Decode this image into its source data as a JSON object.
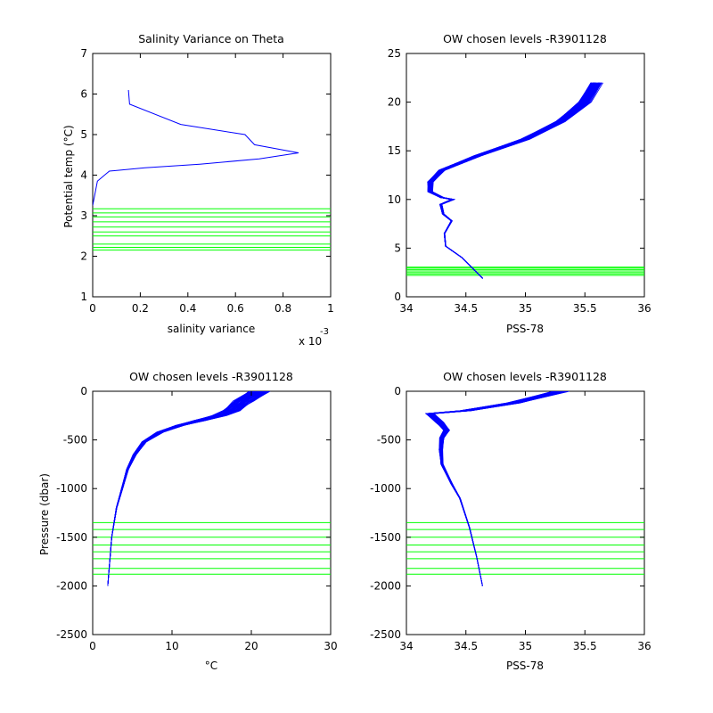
{
  "figure": {
    "background": "#ffffff",
    "axis_color": "#000000",
    "line_color": "#0000ff",
    "level_color": "#00ff00"
  },
  "chart_data": [
    {
      "type": "line",
      "title": "Salinity Variance on Theta",
      "xlabel": "salinity variance",
      "ylabel": "Potential temp (°C)",
      "x_exponent_base": "x 10",
      "x_exponent_power": "-3",
      "xlim": [
        0,
        1
      ],
      "ylim": [
        1,
        7
      ],
      "xticks": [
        0,
        0.2,
        0.4,
        0.6,
        0.8,
        1
      ],
      "xticklabels": [
        "0",
        "0.2",
        "0.4",
        "0.6",
        "0.8",
        "1"
      ],
      "yticks": [
        1,
        2,
        3,
        4,
        5,
        6,
        7
      ],
      "yticklabels": [
        "1",
        "2",
        "3",
        "4",
        "5",
        "6",
        "7"
      ],
      "series": [
        {
          "x": [
            0.15,
            0.155,
            0.37,
            0.64,
            0.68,
            0.865,
            0.7,
            0.45,
            0.22,
            0.07,
            0.05,
            0.02,
            0.0
          ],
          "y": [
            6.1,
            5.75,
            5.25,
            5.0,
            4.75,
            4.55,
            4.4,
            4.27,
            4.18,
            4.1,
            4.0,
            3.85,
            3.25
          ]
        }
      ],
      "levels": [
        2.15,
        2.22,
        2.3,
        2.5,
        2.6,
        2.72,
        2.85,
        2.97,
        3.07,
        3.17
      ]
    },
    {
      "type": "line",
      "title": "OW chosen levels -R3901128",
      "xlabel": "PSS-78",
      "ylabel": "",
      "xlim": [
        34,
        36
      ],
      "ylim": [
        0,
        25
      ],
      "xticks": [
        34,
        34.5,
        35,
        35.5,
        36
      ],
      "xticklabels": [
        "34",
        "34.5",
        "35",
        "35.5",
        "36"
      ],
      "yticks": [
        0,
        5,
        10,
        15,
        20,
        25
      ],
      "yticklabels": [
        "0",
        "5",
        "10",
        "15",
        "20",
        "25"
      ],
      "profile": {
        "x": [
          34.64,
          34.55,
          34.47,
          34.33,
          34.32,
          34.38,
          34.31,
          34.29,
          34.39,
          34.3,
          34.2,
          34.2,
          34.3,
          34.6,
          35.0,
          35.3,
          35.5,
          35.6
        ],
        "y": [
          1.9,
          3.0,
          4.0,
          5.2,
          6.5,
          7.8,
          8.5,
          9.5,
          10.0,
          10.2,
          10.8,
          11.8,
          13.0,
          14.5,
          16.2,
          18.0,
          20.0,
          22.0
        ],
        "count": 70,
        "spread_x": 0.1
      },
      "levels": [
        2.2,
        2.35,
        2.5,
        2.65,
        2.8,
        2.95,
        3.05
      ]
    },
    {
      "type": "line",
      "title": "OW chosen levels -R3901128",
      "xlabel": "°C",
      "ylabel": "Pressure (dbar)",
      "xlim": [
        0,
        30
      ],
      "ylim": [
        -2500,
        0
      ],
      "xticks": [
        0,
        10,
        20,
        30
      ],
      "xticklabels": [
        "0",
        "10",
        "20",
        "30"
      ],
      "yticks": [
        -2500,
        -2000,
        -1500,
        -1000,
        -500,
        0
      ],
      "yticklabels": [
        "-2500",
        "-2000",
        "-1500",
        "-1000",
        "-500",
        "0"
      ],
      "profile": {
        "x": [
          1.9,
          2.4,
          3.0,
          3.7,
          4.4,
          5.3,
          6.5,
          8.5,
          11.0,
          13.5,
          16.0,
          17.5,
          19.0,
          21.0
        ],
        "y": [
          -2000,
          -1500,
          -1200,
          -1000,
          -800,
          -650,
          -520,
          -420,
          -350,
          -300,
          -250,
          -200,
          -100,
          0
        ],
        "count": 70,
        "spread_x": 2.5
      },
      "levels": [
        -1350,
        -1420,
        -1500,
        -1580,
        -1650,
        -1720,
        -1820,
        -1880
      ]
    },
    {
      "type": "line",
      "title": "OW chosen levels -R3901128",
      "xlabel": "PSS-78",
      "ylabel": "",
      "xlim": [
        34,
        36
      ],
      "ylim": [
        -2500,
        0
      ],
      "xticks": [
        34,
        34.5,
        35,
        35.5,
        36
      ],
      "xticklabels": [
        "34",
        "34.5",
        "35",
        "35.5",
        "36"
      ],
      "yticks": [
        -2500,
        -2000,
        -1500,
        -1000,
        -500,
        0
      ],
      "yticklabels": [
        "-2500",
        "-2000",
        "-1500",
        "-1000",
        "-500",
        "0"
      ],
      "profile": {
        "x": [
          34.64,
          34.59,
          34.53,
          34.45,
          34.38,
          34.3,
          34.29,
          34.3,
          34.34,
          34.28,
          34.2,
          34.5,
          34.9,
          35.3
        ],
        "y": [
          -2000,
          -1700,
          -1400,
          -1100,
          -950,
          -750,
          -600,
          -480,
          -400,
          -320,
          -230,
          -200,
          -120,
          0
        ],
        "count": 70,
        "spread_x": 0.12
      },
      "levels": [
        -1350,
        -1420,
        -1500,
        -1580,
        -1650,
        -1720,
        -1820,
        -1880
      ]
    }
  ]
}
